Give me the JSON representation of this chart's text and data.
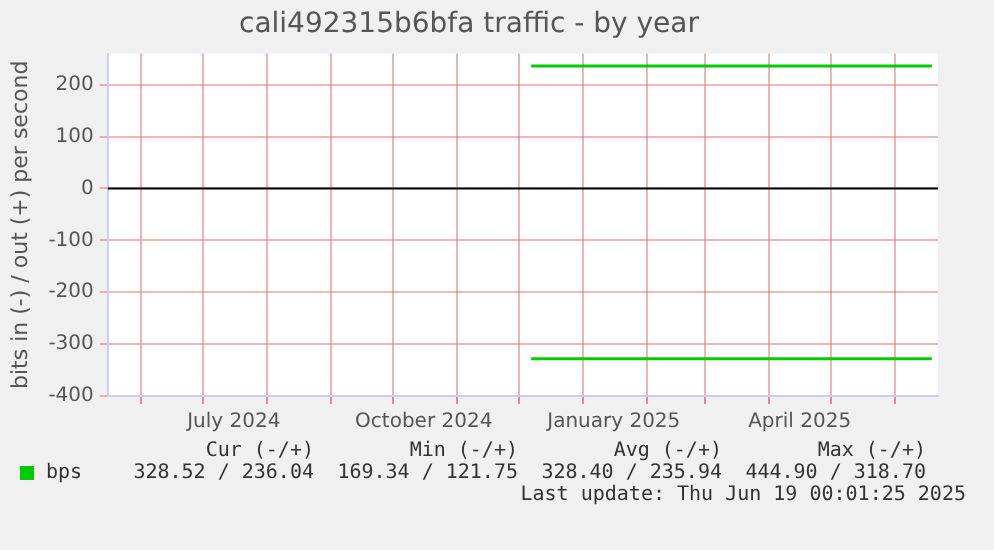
{
  "chart_data": {
    "type": "line",
    "title": "cali492315b6bfa traffic - by year",
    "ylabel": "bits in (-) / out (+) per second",
    "xlim": [
      "2024-05-16",
      "2025-06-22"
    ],
    "xticks": [
      {
        "value": "2024-06-01",
        "label": null
      },
      {
        "value": "2024-07-01",
        "label": null
      },
      {
        "value": "2024-07-16",
        "label": "July 2024"
      },
      {
        "value": "2024-08-01",
        "label": null
      },
      {
        "value": "2024-09-01",
        "label": null
      },
      {
        "value": "2024-10-01",
        "label": null
      },
      {
        "value": "2024-10-16",
        "label": "October 2024"
      },
      {
        "value": "2024-11-01",
        "label": null
      },
      {
        "value": "2024-12-01",
        "label": null
      },
      {
        "value": "2025-01-01",
        "label": null
      },
      {
        "value": "2025-01-16",
        "label": "January 2025"
      },
      {
        "value": "2025-02-01",
        "label": null
      },
      {
        "value": "2025-03-01",
        "label": null
      },
      {
        "value": "2025-04-01",
        "label": null
      },
      {
        "value": "2025-04-16",
        "label": "April 2025"
      },
      {
        "value": "2025-05-01",
        "label": null
      },
      {
        "value": "2025-06-01",
        "label": null
      }
    ],
    "ylim": [
      -400,
      260
    ],
    "yticks": [
      -400,
      -300,
      -200,
      -100,
      0,
      100,
      200
    ],
    "grid": true,
    "legend": "bottom left",
    "marker": "none",
    "line_style": "solid",
    "ref_lines": [
      {
        "axis": "y",
        "value": 0,
        "color": "#000000"
      }
    ],
    "series": [
      {
        "name": "bps",
        "color": "#00cc00",
        "x": [
          "2024-12-07",
          "2025-06-19"
        ],
        "values": [
          236,
          236
        ]
      },
      {
        "color": "#00cc00",
        "x": [
          "2024-12-07",
          "2025-06-19"
        ],
        "values": [
          -328,
          -328
        ]
      }
    ],
    "annotations": [
      "Cur (-/+)",
      "Min (-/+)",
      "Avg (-/+)",
      "Max (-/+)",
      "328.52 / 236.04",
      "169.34 / 121.75",
      "328.40 / 235.94",
      "444.90 / 318.70",
      "Last update: Thu Jun 19 00:01:25 2025"
    ]
  }
}
